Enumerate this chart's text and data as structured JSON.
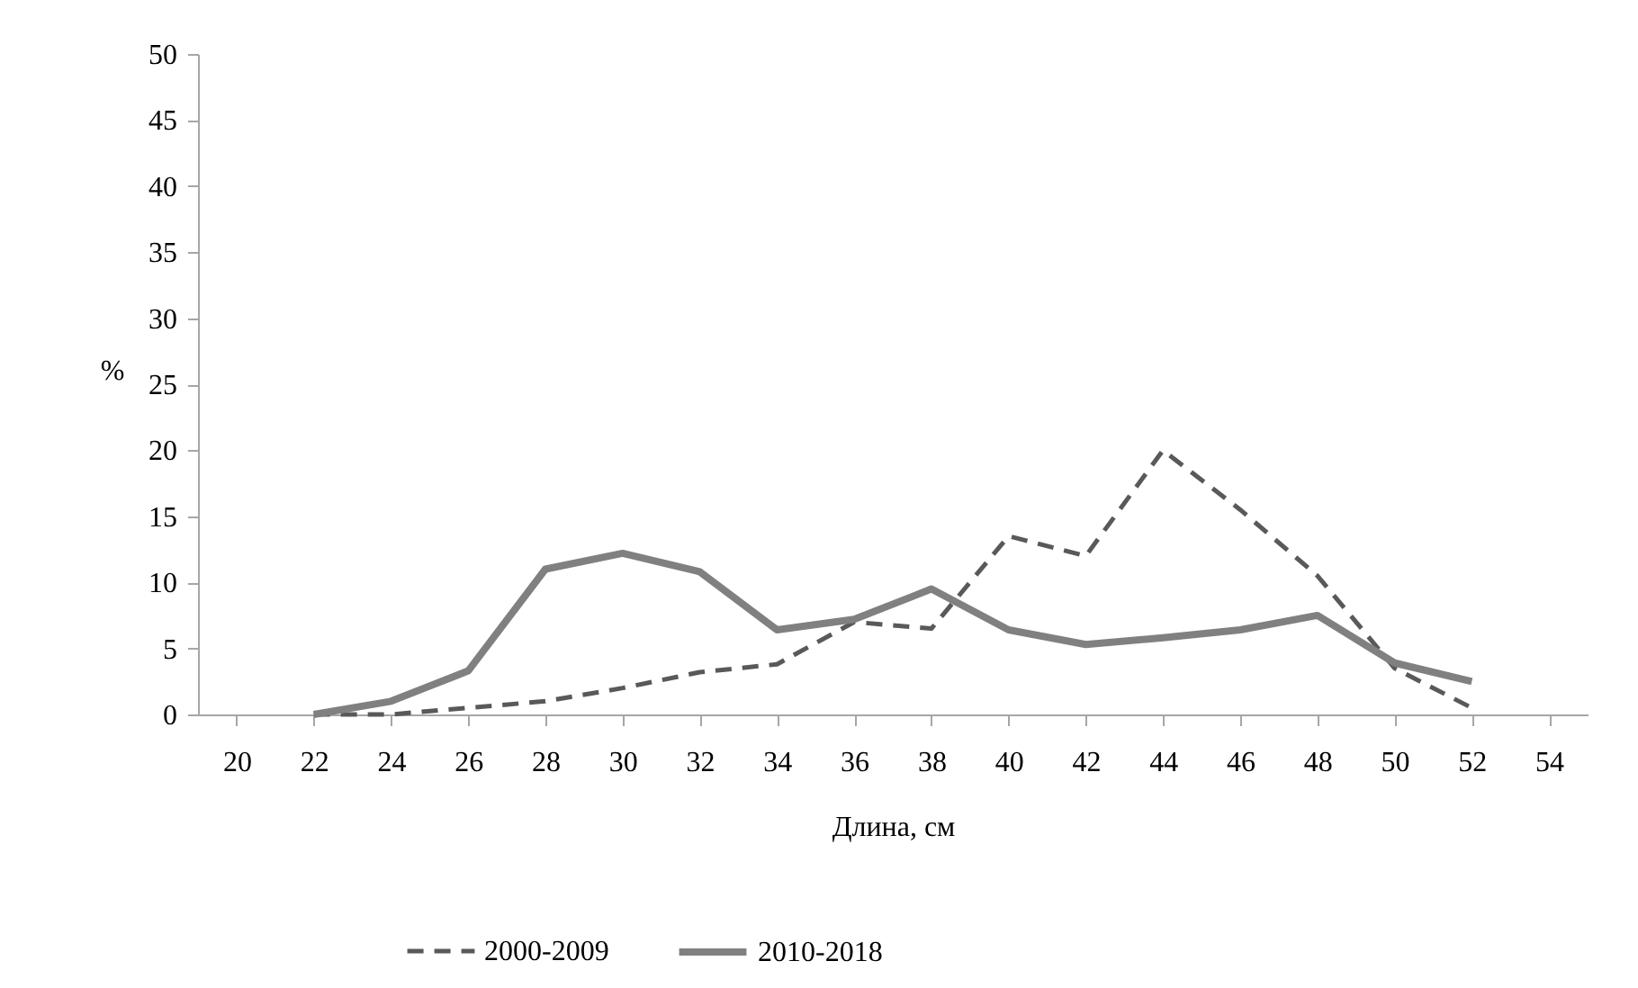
{
  "chart_data": {
    "type": "line",
    "xlabel": "Длина, см",
    "ylabel": "%",
    "categories": [
      "20",
      "22",
      "24",
      "26",
      "28",
      "30",
      "32",
      "34",
      "36",
      "38",
      "40",
      "42",
      "44",
      "46",
      "48",
      "50",
      "52",
      "54"
    ],
    "ylim": [
      0,
      50
    ],
    "yticks": [
      0,
      5,
      10,
      15,
      20,
      25,
      30,
      35,
      40,
      45,
      50
    ],
    "grid": false,
    "legend": "bottom",
    "marker": "none",
    "series": [
      {
        "name": "2000-2009",
        "color": "#595959",
        "line_style": "dashed",
        "values": [
          null,
          0,
          0,
          0.5,
          1,
          2,
          3.2,
          3.8,
          7,
          6.5,
          13.5,
          12,
          20,
          15.5,
          10.5,
          3.5,
          0.5,
          null
        ]
      },
      {
        "name": "2010-2018",
        "color": "#808080",
        "line_style": "solid",
        "values": [
          null,
          0,
          1,
          3.3,
          11,
          12.2,
          10.8,
          6.4,
          7.2,
          9.5,
          6.4,
          5.3,
          5.8,
          6.4,
          7.5,
          3.9,
          2.5,
          null
        ]
      }
    ]
  }
}
